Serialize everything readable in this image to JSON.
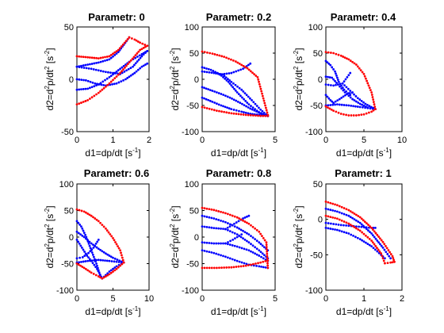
{
  "figure": {
    "background": "#ffffff",
    "xlabel_parts": [
      "d1=dp/dt [s",
      "-1",
      "]"
    ],
    "ylabel_parts": [
      "d2=d",
      "2",
      "p/dt",
      "2",
      " [s",
      "-2",
      "]"
    ],
    "colors": {
      "red": "#ff0000",
      "blue": "#0000ff"
    }
  },
  "chart_data": [
    {
      "type": "scatter",
      "title": "Parametr: 0",
      "xlim": [
        0,
        2
      ],
      "ylim": [
        -50,
        50
      ],
      "xticks": [
        0,
        1,
        2
      ],
      "yticks": [
        -50,
        0,
        50
      ],
      "red_curves": [
        [
          [
            0,
            22
          ],
          [
            0.3,
            21
          ],
          [
            0.6,
            20
          ],
          [
            0.9,
            22
          ],
          [
            1.15,
            28
          ],
          [
            1.45,
            40
          ]
        ],
        [
          [
            0,
            -24
          ],
          [
            0.3,
            -20
          ],
          [
            0.6,
            -13
          ],
          [
            0.9,
            -4
          ],
          [
            1.2,
            6
          ],
          [
            1.5,
            18
          ],
          [
            1.75,
            28
          ],
          [
            1.95,
            32
          ]
        ],
        [
          [
            1.45,
            40
          ],
          [
            1.6,
            38
          ],
          [
            1.75,
            35
          ],
          [
            1.95,
            32
          ]
        ]
      ],
      "blue_curves": [
        [
          [
            0,
            12
          ],
          [
            0.3,
            14
          ],
          [
            0.6,
            16
          ],
          [
            0.9,
            19
          ],
          [
            1.15,
            26
          ],
          [
            1.45,
            40
          ]
        ],
        [
          [
            0,
            12
          ],
          [
            0.4,
            10
          ],
          [
            0.8,
            7
          ],
          [
            1.2,
            5
          ],
          [
            1.55,
            12
          ],
          [
            1.8,
            22
          ],
          [
            1.95,
            27
          ]
        ],
        [
          [
            0,
            -10
          ],
          [
            0.3,
            -9
          ],
          [
            0.6,
            -5
          ],
          [
            0.9,
            2
          ],
          [
            1.2,
            10
          ],
          [
            1.5,
            18
          ],
          [
            1.8,
            24
          ],
          [
            1.95,
            27
          ]
        ],
        [
          [
            0,
            0
          ],
          [
            0.25,
            -1
          ],
          [
            0.5,
            -4
          ],
          [
            0.8,
            -6
          ],
          [
            1.1,
            -4
          ],
          [
            1.35,
            0
          ],
          [
            1.6,
            6
          ],
          [
            1.8,
            12
          ],
          [
            1.95,
            15
          ]
        ]
      ]
    },
    {
      "type": "scatter",
      "title": "Parametr: 0.2",
      "xlim": [
        0,
        5
      ],
      "ylim": [
        -100,
        100
      ],
      "xticks": [
        0,
        5
      ],
      "yticks": [
        -100,
        -50,
        0,
        50,
        100
      ],
      "red_curves": [
        [
          [
            0,
            53
          ],
          [
            0.7,
            49
          ],
          [
            1.5,
            43
          ],
          [
            2.3,
            34
          ],
          [
            3.1,
            21
          ],
          [
            3.8,
            4
          ],
          [
            4.5,
            -68
          ]
        ],
        [
          [
            0,
            -53
          ],
          [
            1.0,
            -60
          ],
          [
            2.0,
            -65
          ],
          [
            3.0,
            -68
          ],
          [
            4.0,
            -70
          ],
          [
            4.5,
            -70
          ]
        ]
      ],
      "blue_curves": [
        [
          [
            0,
            23
          ],
          [
            0.6,
            18
          ],
          [
            1.2,
            10
          ],
          [
            1.8,
            -5
          ],
          [
            2.4,
            -25
          ],
          [
            3.2,
            -48
          ],
          [
            3.9,
            -63
          ],
          [
            4.5,
            -70
          ]
        ],
        [
          [
            0,
            15
          ],
          [
            0.8,
            12
          ],
          [
            1.4,
            9
          ],
          [
            2.0,
            -5
          ],
          [
            2.7,
            -20
          ],
          [
            3.4,
            -40
          ],
          [
            4.0,
            -58
          ],
          [
            4.5,
            -70
          ]
        ],
        [
          [
            0,
            -15
          ],
          [
            0.7,
            -22
          ],
          [
            1.3,
            -28
          ],
          [
            1.9,
            -35
          ],
          [
            2.6,
            -45
          ],
          [
            3.3,
            -56
          ],
          [
            4.0,
            -65
          ],
          [
            4.5,
            -70
          ]
        ],
        [
          [
            0,
            -35
          ],
          [
            0.7,
            -43
          ],
          [
            1.3,
            -50
          ],
          [
            2.0,
            -57
          ],
          [
            2.7,
            -62
          ],
          [
            3.3,
            -66
          ],
          [
            3.9,
            -68
          ],
          [
            4.5,
            -70
          ]
        ],
        [
          [
            1.2,
            9
          ],
          [
            2.0,
            12
          ],
          [
            2.8,
            20
          ],
          [
            3.3,
            30
          ]
        ]
      ]
    },
    {
      "type": "scatter",
      "title": "Parametr: 0.4",
      "xlim": [
        0,
        10
      ],
      "ylim": [
        -100,
        100
      ],
      "xticks": [
        0,
        5,
        10
      ],
      "yticks": [
        -100,
        -50,
        0,
        50,
        100
      ],
      "red_curves": [
        [
          [
            0,
            52
          ],
          [
            1.0,
            50
          ],
          [
            2.0,
            45
          ],
          [
            3.0,
            38
          ],
          [
            4.0,
            28
          ],
          [
            5.0,
            10
          ],
          [
            6.0,
            -25
          ],
          [
            6.5,
            -57
          ]
        ],
        [
          [
            0,
            -52
          ],
          [
            1.0,
            -60
          ],
          [
            2.0,
            -66
          ],
          [
            3.0,
            -69
          ],
          [
            4.0,
            -69
          ],
          [
            5.0,
            -67
          ],
          [
            6.0,
            -62
          ],
          [
            6.5,
            -57
          ]
        ]
      ],
      "blue_curves": [
        [
          [
            0,
            5
          ],
          [
            0.8,
            3
          ],
          [
            1.6,
            -10
          ],
          [
            2.5,
            -25
          ],
          [
            3.5,
            -38
          ],
          [
            4.5,
            -47
          ],
          [
            5.5,
            -54
          ],
          [
            6.5,
            -57
          ]
        ],
        [
          [
            0,
            35
          ],
          [
            0.6,
            27
          ],
          [
            1.2,
            15
          ],
          [
            1.7,
            -5
          ],
          [
            2.4,
            -20
          ],
          [
            3.2,
            -30
          ]
        ],
        [
          [
            0,
            -30
          ],
          [
            0.6,
            -40
          ],
          [
            1.0,
            -45
          ],
          [
            1.8,
            -38
          ],
          [
            2.8,
            -28
          ],
          [
            3.5,
            -25
          ]
        ],
        [
          [
            0,
            -10
          ],
          [
            1.0,
            -12
          ],
          [
            2.2,
            -8
          ],
          [
            3.2,
            12
          ]
        ],
        [
          [
            2.2,
            -8
          ],
          [
            3.2,
            -22
          ],
          [
            4.2,
            -36
          ],
          [
            5.2,
            -47
          ],
          [
            6.5,
            -57
          ]
        ],
        [
          [
            0,
            -50
          ],
          [
            1.5,
            -48
          ],
          [
            3.0,
            -50
          ],
          [
            4.5,
            -53
          ],
          [
            6.5,
            -57
          ]
        ]
      ]
    },
    {
      "type": "scatter",
      "title": "Parametr: 0.6",
      "xlim": [
        0,
        10
      ],
      "ylim": [
        -100,
        100
      ],
      "xticks": [
        0,
        5,
        10
      ],
      "yticks": [
        -100,
        -50,
        0,
        50,
        100
      ],
      "red_curves": [
        [
          [
            0,
            52
          ],
          [
            1.0,
            48
          ],
          [
            2.0,
            40
          ],
          [
            3.0,
            30
          ],
          [
            4.0,
            16
          ],
          [
            5.0,
            -2
          ],
          [
            6.0,
            -25
          ],
          [
            6.5,
            -48
          ]
        ],
        [
          [
            0,
            -50
          ],
          [
            1.0,
            -58
          ],
          [
            2.0,
            -67
          ],
          [
            3.0,
            -74
          ],
          [
            3.5,
            -78
          ],
          [
            4.5,
            -70
          ],
          [
            5.5,
            -60
          ],
          [
            6.5,
            -48
          ]
        ]
      ],
      "blue_curves": [
        [
          [
            0,
            10
          ],
          [
            1.0,
            0
          ],
          [
            2.0,
            -12
          ],
          [
            3.0,
            -22
          ],
          [
            4.0,
            -31
          ],
          [
            5.0,
            -39
          ],
          [
            6.5,
            -48
          ]
        ],
        [
          [
            0,
            30
          ],
          [
            0.6,
            20
          ],
          [
            1.3,
            0
          ],
          [
            2.0,
            -25
          ],
          [
            2.7,
            -50
          ],
          [
            3.3,
            -75
          ]
        ],
        [
          [
            0,
            -5
          ],
          [
            0.7,
            -20
          ],
          [
            1.4,
            -35
          ],
          [
            2.0,
            -45
          ],
          [
            2.8,
            -60
          ],
          [
            3.5,
            -78
          ]
        ],
        [
          [
            0,
            -40
          ],
          [
            0.8,
            -38
          ],
          [
            1.6,
            -30
          ],
          [
            2.3,
            -20
          ],
          [
            3.0,
            -5
          ]
        ],
        [
          [
            0,
            -48
          ],
          [
            1.5,
            -45
          ],
          [
            3.0,
            -43
          ],
          [
            4.5,
            -45
          ],
          [
            6.5,
            -48
          ]
        ],
        [
          [
            3.5,
            -78
          ],
          [
            4.5,
            -65
          ],
          [
            5.5,
            -55
          ],
          [
            6.5,
            -48
          ]
        ]
      ]
    },
    {
      "type": "scatter",
      "title": "Parametr: 0.8",
      "xlim": [
        0,
        5
      ],
      "ylim": [
        -100,
        100
      ],
      "xticks": [
        0,
        5
      ],
      "yticks": [
        -100,
        -50,
        0,
        50,
        100
      ],
      "red_curves": [
        [
          [
            0,
            55
          ],
          [
            0.8,
            51
          ],
          [
            1.6,
            45
          ],
          [
            2.4,
            37
          ],
          [
            3.2,
            25
          ],
          [
            3.9,
            10
          ],
          [
            4.4,
            -10
          ],
          [
            4.5,
            -58
          ]
        ],
        [
          [
            0,
            -58
          ],
          [
            1.0,
            -58
          ],
          [
            2.0,
            -57
          ],
          [
            3.0,
            -54
          ],
          [
            4.0,
            -48
          ],
          [
            4.5,
            -44
          ]
        ]
      ],
      "blue_curves": [
        [
          [
            0,
            40
          ],
          [
            0.8,
            35
          ],
          [
            1.6,
            28
          ],
          [
            2.4,
            18
          ],
          [
            3.2,
            5
          ],
          [
            3.9,
            -10
          ],
          [
            4.5,
            -25
          ]
        ],
        [
          [
            0,
            20
          ],
          [
            0.8,
            17
          ],
          [
            1.6,
            15
          ],
          [
            2.4,
            5
          ],
          [
            3.2,
            -10
          ],
          [
            3.9,
            -25
          ],
          [
            4.5,
            -40
          ]
        ],
        [
          [
            0,
            -10
          ],
          [
            0.8,
            -12
          ],
          [
            1.6,
            -12
          ],
          [
            2.4,
            -18
          ],
          [
            3.2,
            -25
          ],
          [
            3.9,
            -35
          ],
          [
            4.5,
            -45
          ]
        ],
        [
          [
            0,
            -25
          ],
          [
            0.8,
            -30
          ],
          [
            1.6,
            -37
          ],
          [
            2.4,
            -45
          ],
          [
            3.2,
            -52
          ],
          [
            3.9,
            -55
          ],
          [
            4.5,
            -58
          ]
        ],
        [
          [
            1.6,
            15
          ],
          [
            2.2,
            25
          ],
          [
            2.8,
            35
          ],
          [
            3.2,
            40
          ]
        ],
        [
          [
            1.6,
            -12
          ],
          [
            2.1,
            -5
          ],
          [
            2.7,
            5
          ]
        ]
      ]
    },
    {
      "type": "scatter",
      "title": "Parametr: 1",
      "xlim": [
        0,
        2
      ],
      "ylim": [
        -100,
        50
      ],
      "xticks": [
        0,
        1,
        2
      ],
      "yticks": [
        -100,
        -50,
        0,
        50
      ],
      "red_curves": [
        [
          [
            0,
            25
          ],
          [
            0.3,
            20
          ],
          [
            0.6,
            13
          ],
          [
            0.9,
            3
          ],
          [
            1.2,
            -12
          ],
          [
            1.5,
            -32
          ],
          [
            1.75,
            -52
          ],
          [
            1.8,
            -60
          ]
        ],
        [
          [
            0,
            5
          ],
          [
            0.3,
            1
          ],
          [
            0.6,
            -6
          ],
          [
            0.9,
            -16
          ],
          [
            1.2,
            -30
          ],
          [
            1.45,
            -48
          ],
          [
            1.55,
            -62
          ]
        ],
        [
          [
            1.55,
            -62
          ],
          [
            1.7,
            -61
          ],
          [
            1.8,
            -60
          ]
        ]
      ],
      "blue_curves": [
        [
          [
            0,
            15
          ],
          [
            0.3,
            11
          ],
          [
            0.6,
            5
          ],
          [
            0.9,
            -5
          ],
          [
            1.2,
            -20
          ],
          [
            1.5,
            -40
          ],
          [
            1.7,
            -55
          ]
        ],
        [
          [
            0,
            -12
          ],
          [
            0.3,
            -15
          ],
          [
            0.6,
            -20
          ],
          [
            0.9,
            -28
          ],
          [
            1.2,
            -38
          ],
          [
            1.45,
            -50
          ],
          [
            1.55,
            -55
          ]
        ],
        [
          [
            0,
            -5
          ],
          [
            0.4,
            -8
          ],
          [
            0.8,
            -10
          ],
          [
            1.2,
            -12
          ],
          [
            1.3,
            -12
          ]
        ]
      ]
    }
  ]
}
